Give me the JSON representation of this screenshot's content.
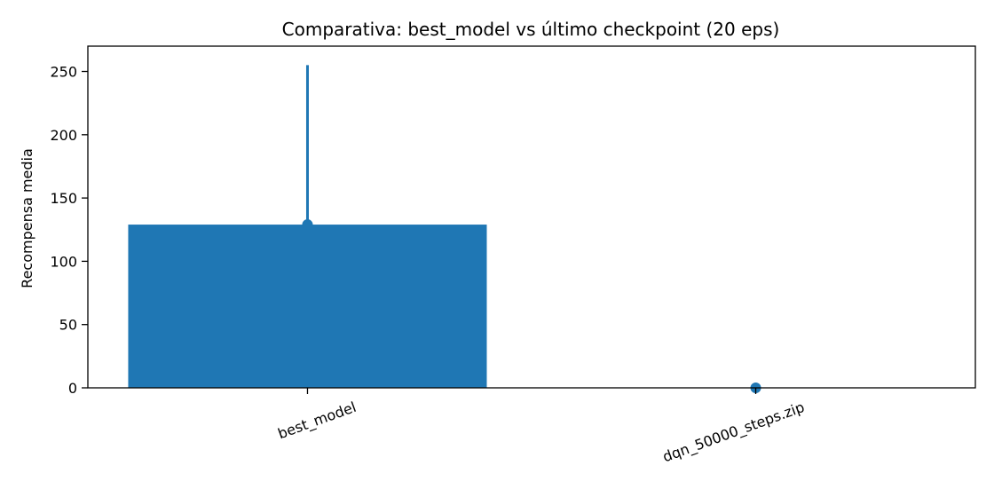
{
  "chart_data": {
    "type": "bar",
    "title": "Comparativa: best_model vs último checkpoint (20 eps)",
    "xlabel": "",
    "ylabel": "Recompensa media",
    "categories": [
      "best_model",
      "dqn_50000_steps.zip"
    ],
    "values": [
      129,
      0
    ],
    "error_high": [
      255,
      0
    ],
    "ylim": [
      0,
      270
    ],
    "yticks": [
      0,
      50,
      100,
      150,
      200,
      250
    ],
    "grid": false,
    "bar_color": "#1f77b4",
    "error_color": "#1f77b4"
  }
}
